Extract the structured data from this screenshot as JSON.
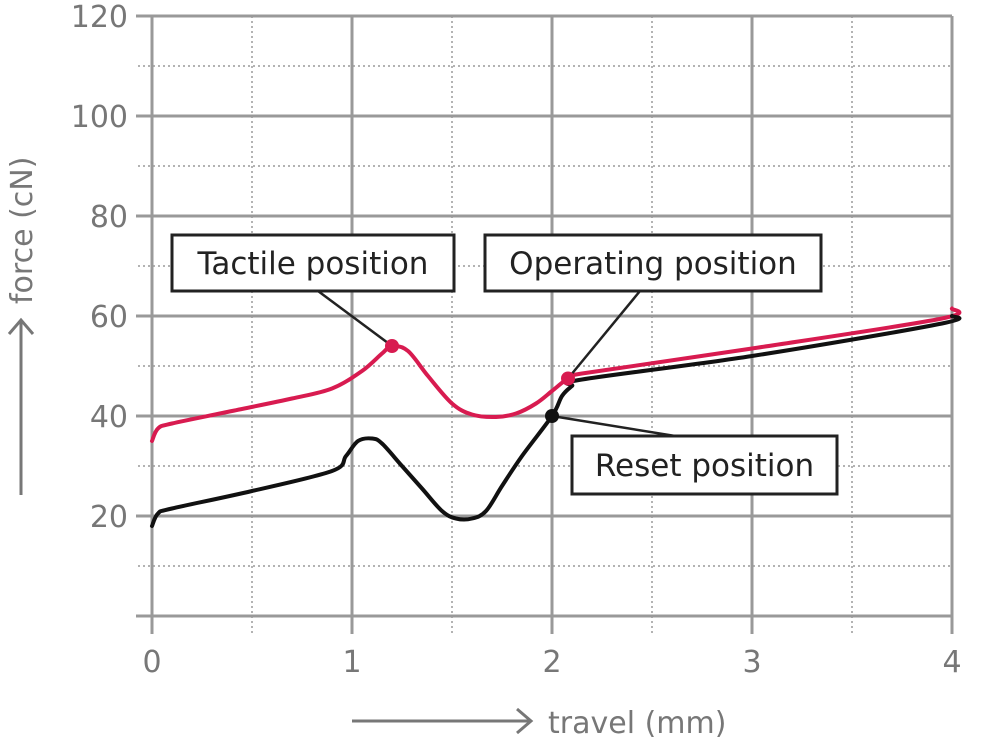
{
  "chart_data": {
    "type": "line",
    "xlabel": "travel (mm)",
    "ylabel": "force (cN)",
    "xlim": [
      0,
      4
    ],
    "ylim": [
      0,
      120
    ],
    "x_ticks": [
      "0",
      "1",
      "2",
      "3",
      "4"
    ],
    "y_ticks": [
      "20",
      "40",
      "60",
      "80",
      "100",
      "120"
    ],
    "grid": true,
    "series": [
      {
        "color": "#d81b50",
        "points": [
          [
            0,
            35
          ],
          [
            0.03,
            37.5
          ],
          [
            0.1,
            38.5
          ],
          [
            0.4,
            41
          ],
          [
            0.7,
            43.5
          ],
          [
            0.9,
            45.5
          ],
          [
            1.05,
            49
          ],
          [
            1.15,
            52.5
          ],
          [
            1.2,
            54
          ],
          [
            1.28,
            53
          ],
          [
            1.38,
            48
          ],
          [
            1.5,
            42.5
          ],
          [
            1.6,
            40.3
          ],
          [
            1.72,
            39.8
          ],
          [
            1.82,
            40.5
          ],
          [
            1.92,
            42.5
          ],
          [
            2.0,
            45
          ],
          [
            2.08,
            47.5
          ],
          [
            2.15,
            48.5
          ],
          [
            3.0,
            53.5
          ],
          [
            3.95,
            59.5
          ],
          [
            4.0,
            61.5
          ]
        ]
      },
      {
        "color": "#111111",
        "points": [
          [
            0,
            18
          ],
          [
            0.03,
            20.5
          ],
          [
            0.1,
            21.5
          ],
          [
            0.5,
            25
          ],
          [
            0.9,
            29
          ],
          [
            0.97,
            32
          ],
          [
            1.03,
            35
          ],
          [
            1.1,
            35.5
          ],
          [
            1.15,
            34.5
          ],
          [
            1.25,
            30
          ],
          [
            1.35,
            25.5
          ],
          [
            1.45,
            21
          ],
          [
            1.52,
            19.5
          ],
          [
            1.6,
            19.5
          ],
          [
            1.67,
            21
          ],
          [
            1.75,
            26
          ],
          [
            1.85,
            32
          ],
          [
            2.0,
            40
          ],
          [
            2.05,
            44
          ],
          [
            2.1,
            46
          ],
          [
            2.15,
            47.3
          ],
          [
            3.0,
            52
          ],
          [
            3.95,
            58.5
          ],
          [
            4.0,
            60
          ]
        ]
      }
    ],
    "markers": [
      {
        "x": 1.2,
        "y": 54,
        "color": "#d81b50"
      },
      {
        "x": 2.08,
        "y": 47.5,
        "color": "#d81b50"
      },
      {
        "x": 2.0,
        "y": 40,
        "color": "#111111"
      }
    ],
    "annotations": [
      {
        "text": "Tactile position",
        "x": 1.2,
        "y": 54
      },
      {
        "text": "Operating position",
        "x": 2.08,
        "y": 47.5
      },
      {
        "text": "Reset position",
        "x": 2.0,
        "y": 40
      }
    ]
  }
}
